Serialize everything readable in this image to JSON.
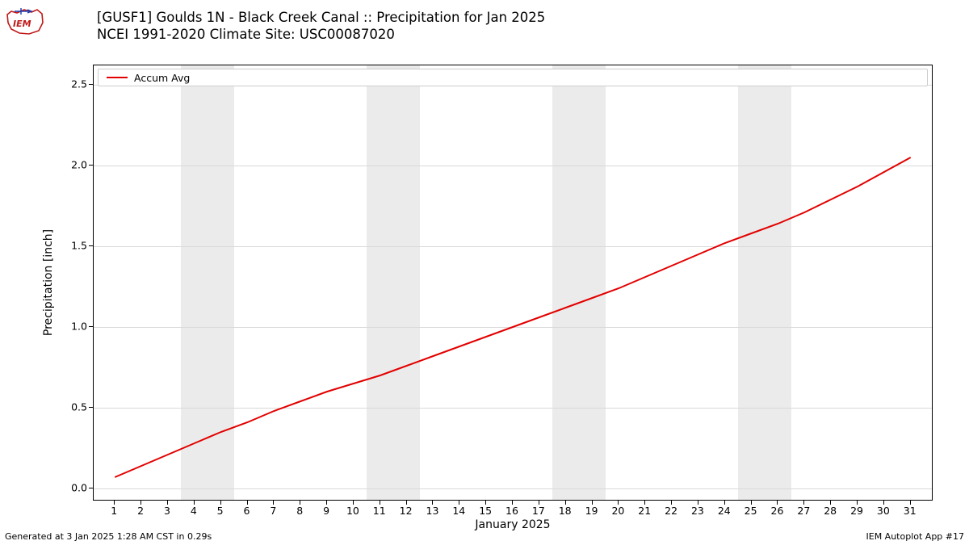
{
  "logo": {
    "name": "iem-logo",
    "outline_color": "#c01818",
    "accent_color": "#1a3bb0"
  },
  "title": {
    "line1": "[GUSF1] Goulds 1N - Black Creek Canal :: Precipitation for Jan 2025",
    "line2": "NCEI 1991-2020 Climate Site: USC00087020",
    "fontsize": 16.5,
    "color": "#000000"
  },
  "chart": {
    "type": "line",
    "background_color": "#ffffff",
    "plot_border_color": "#000000",
    "grid_color": "#d9d9d9",
    "weekend_band_color": "#ebebeb",
    "xlim": [
      0.2,
      31.8
    ],
    "ylim": [
      -0.07,
      2.62
    ],
    "yticks": [
      0.0,
      0.5,
      1.0,
      1.5,
      2.0,
      2.5
    ],
    "xticks": [
      1,
      2,
      3,
      4,
      5,
      6,
      7,
      8,
      9,
      10,
      11,
      12,
      13,
      14,
      15,
      16,
      17,
      18,
      19,
      20,
      21,
      22,
      23,
      24,
      25,
      26,
      27,
      28,
      29,
      30,
      31
    ],
    "xlabel": "January 2025",
    "ylabel": "Precipitation [inch]",
    "label_fontsize": 14,
    "tick_fontsize": 12.5,
    "weekend_bands": [
      {
        "start": 3.5,
        "end": 5.5
      },
      {
        "start": 10.5,
        "end": 12.5
      },
      {
        "start": 17.5,
        "end": 19.5
      },
      {
        "start": 24.5,
        "end": 26.5
      }
    ],
    "legend": {
      "label": "Accum Avg",
      "border_color": "#cccccc",
      "fontsize": 12.5
    },
    "series": {
      "name": "Accum Avg",
      "color": "#e30000",
      "line_width": 2,
      "x": [
        1,
        2,
        3,
        4,
        5,
        6,
        7,
        8,
        9,
        10,
        11,
        12,
        13,
        14,
        15,
        16,
        17,
        18,
        19,
        20,
        21,
        22,
        23,
        24,
        25,
        26,
        27,
        28,
        29,
        30,
        31
      ],
      "y": [
        0.07,
        0.14,
        0.21,
        0.28,
        0.35,
        0.41,
        0.48,
        0.54,
        0.6,
        0.65,
        0.7,
        0.76,
        0.82,
        0.88,
        0.94,
        1.0,
        1.06,
        1.12,
        1.18,
        1.24,
        1.31,
        1.38,
        1.45,
        1.52,
        1.58,
        1.64,
        1.71,
        1.79,
        1.87,
        1.96,
        2.05
      ]
    }
  },
  "footer": {
    "left": "Generated at 3 Jan 2025 1:28 AM CST in 0.29s",
    "right": "IEM Autoplot App #17",
    "fontsize": 11
  }
}
